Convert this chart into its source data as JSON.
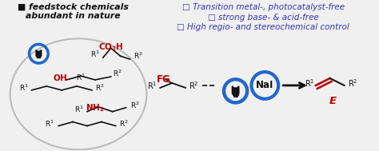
{
  "bg_color": "#f0f0f0",
  "left_title_bullet": "■",
  "left_title_line1": " feedstock chemicals",
  "left_title_line2": "abundant in nature",
  "right_bullets": [
    "□ Transition metal-, photocatalyst-free",
    "□ strong base- & acid-free",
    "□ High regio- and stereochemical control"
  ],
  "right_bullet_color": "#3333bb",
  "red_color": "#bb0000",
  "blue_color": "#2266cc",
  "black_color": "#111111",
  "gray_color": "#aaaaaa",
  "nal_text": "NaI",
  "e_text": "E",
  "fg_text": "FG"
}
